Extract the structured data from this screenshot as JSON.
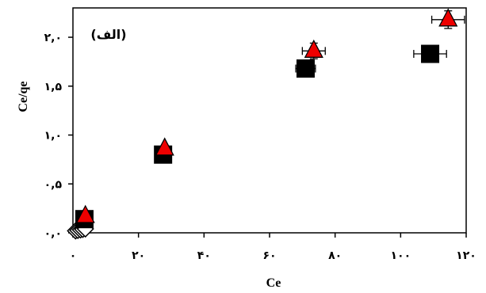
{
  "chart_data": {
    "type": "scatter",
    "title": "",
    "panel_label": "(الف)",
    "xlabel": "Ce",
    "ylabel": "Ce/qe",
    "xlim": [
      0,
      120
    ],
    "ylim": [
      0.0,
      2.3
    ],
    "x_ticks": [
      {
        "value": 0,
        "label": "۰"
      },
      {
        "value": 20,
        "label": "۲۰"
      },
      {
        "value": 40,
        "label": "۴۰"
      },
      {
        "value": 60,
        "label": "۶۰"
      },
      {
        "value": 80,
        "label": "۸۰"
      },
      {
        "value": 100,
        "label": "۱۰۰"
      },
      {
        "value": 120,
        "label": "۱۲۰"
      }
    ],
    "y_ticks": [
      {
        "value": 0.0,
        "label": "۰,۰"
      },
      {
        "value": 0.5,
        "label": "۰,۵"
      },
      {
        "value": 1.0,
        "label": "۱,۰"
      },
      {
        "value": 1.5,
        "label": "۱,۵"
      },
      {
        "value": 2.0,
        "label": "۲,۰"
      }
    ],
    "grid": false,
    "series": [
      {
        "marker": "diamond",
        "color": "#ffffff",
        "points": [
          {
            "x": 0.8,
            "y": 0.02
          },
          {
            "x": 1.5,
            "y": 0.025
          },
          {
            "x": 2.3,
            "y": 0.03
          },
          {
            "x": 3.0,
            "y": 0.035
          },
          {
            "x": 3.8,
            "y": 0.04
          }
        ]
      },
      {
        "marker": "square",
        "color": "#000000",
        "points": [
          {
            "x": 3.5,
            "y": 0.14,
            "xerr": 0
          },
          {
            "x": 27.5,
            "y": 0.8,
            "xerr": 0
          },
          {
            "x": 71.0,
            "y": 1.68,
            "xerr": 3.0
          },
          {
            "x": 109.0,
            "y": 1.83,
            "xerr": 5.0
          }
        ]
      },
      {
        "marker": "triangle",
        "color": "#ee0000",
        "points": [
          {
            "x": 3.8,
            "y": 0.17,
            "xerr": 0,
            "yerr": 0
          },
          {
            "x": 28.0,
            "y": 0.86,
            "xerr": 0,
            "yerr": 0
          },
          {
            "x": 73.5,
            "y": 1.86,
            "xerr": 3.5,
            "yerr": 0.08
          },
          {
            "x": 114.5,
            "y": 2.18,
            "xerr": 5.0,
            "yerr": 0.09
          }
        ]
      }
    ]
  }
}
